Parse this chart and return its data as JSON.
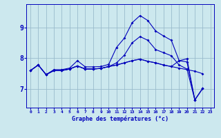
{
  "title": "",
  "xlabel": "Graphe des températures (°c)",
  "bg_color": "#cce8ee",
  "line_color": "#0000bb",
  "grid_color": "#99bbcc",
  "x_ticks": [
    0,
    1,
    2,
    3,
    4,
    5,
    6,
    7,
    8,
    9,
    10,
    11,
    12,
    13,
    14,
    15,
    16,
    17,
    18,
    19,
    20,
    21,
    22,
    23
  ],
  "y_ticks": [
    7,
    8,
    9
  ],
  "ylim": [
    6.4,
    9.75
  ],
  "xlim": [
    -0.5,
    23.5
  ],
  "series": [
    [
      7.6,
      7.78,
      7.47,
      7.63,
      7.63,
      7.68,
      7.92,
      7.72,
      7.72,
      7.73,
      7.8,
      8.35,
      8.65,
      9.15,
      9.38,
      9.22,
      8.88,
      8.72,
      8.58,
      7.92,
      7.88,
      6.65,
      7.02,
      null
    ],
    [
      7.6,
      7.78,
      7.47,
      7.6,
      7.6,
      7.65,
      7.75,
      7.65,
      7.65,
      7.67,
      7.73,
      7.78,
      7.85,
      7.92,
      7.97,
      7.9,
      7.85,
      7.78,
      7.73,
      7.92,
      7.98,
      6.65,
      7.02,
      null
    ],
    [
      7.6,
      7.78,
      7.47,
      7.6,
      7.6,
      7.65,
      7.75,
      7.65,
      7.65,
      7.67,
      7.73,
      7.78,
      7.85,
      7.92,
      7.97,
      7.9,
      7.85,
      7.78,
      7.73,
      7.68,
      7.63,
      7.58,
      7.5,
      null
    ],
    [
      7.6,
      7.78,
      7.47,
      7.6,
      7.6,
      7.65,
      7.75,
      7.65,
      7.65,
      7.67,
      7.73,
      7.85,
      8.1,
      8.5,
      8.7,
      8.58,
      8.28,
      8.18,
      8.08,
      7.78,
      7.65,
      6.65,
      7.02,
      null
    ]
  ]
}
